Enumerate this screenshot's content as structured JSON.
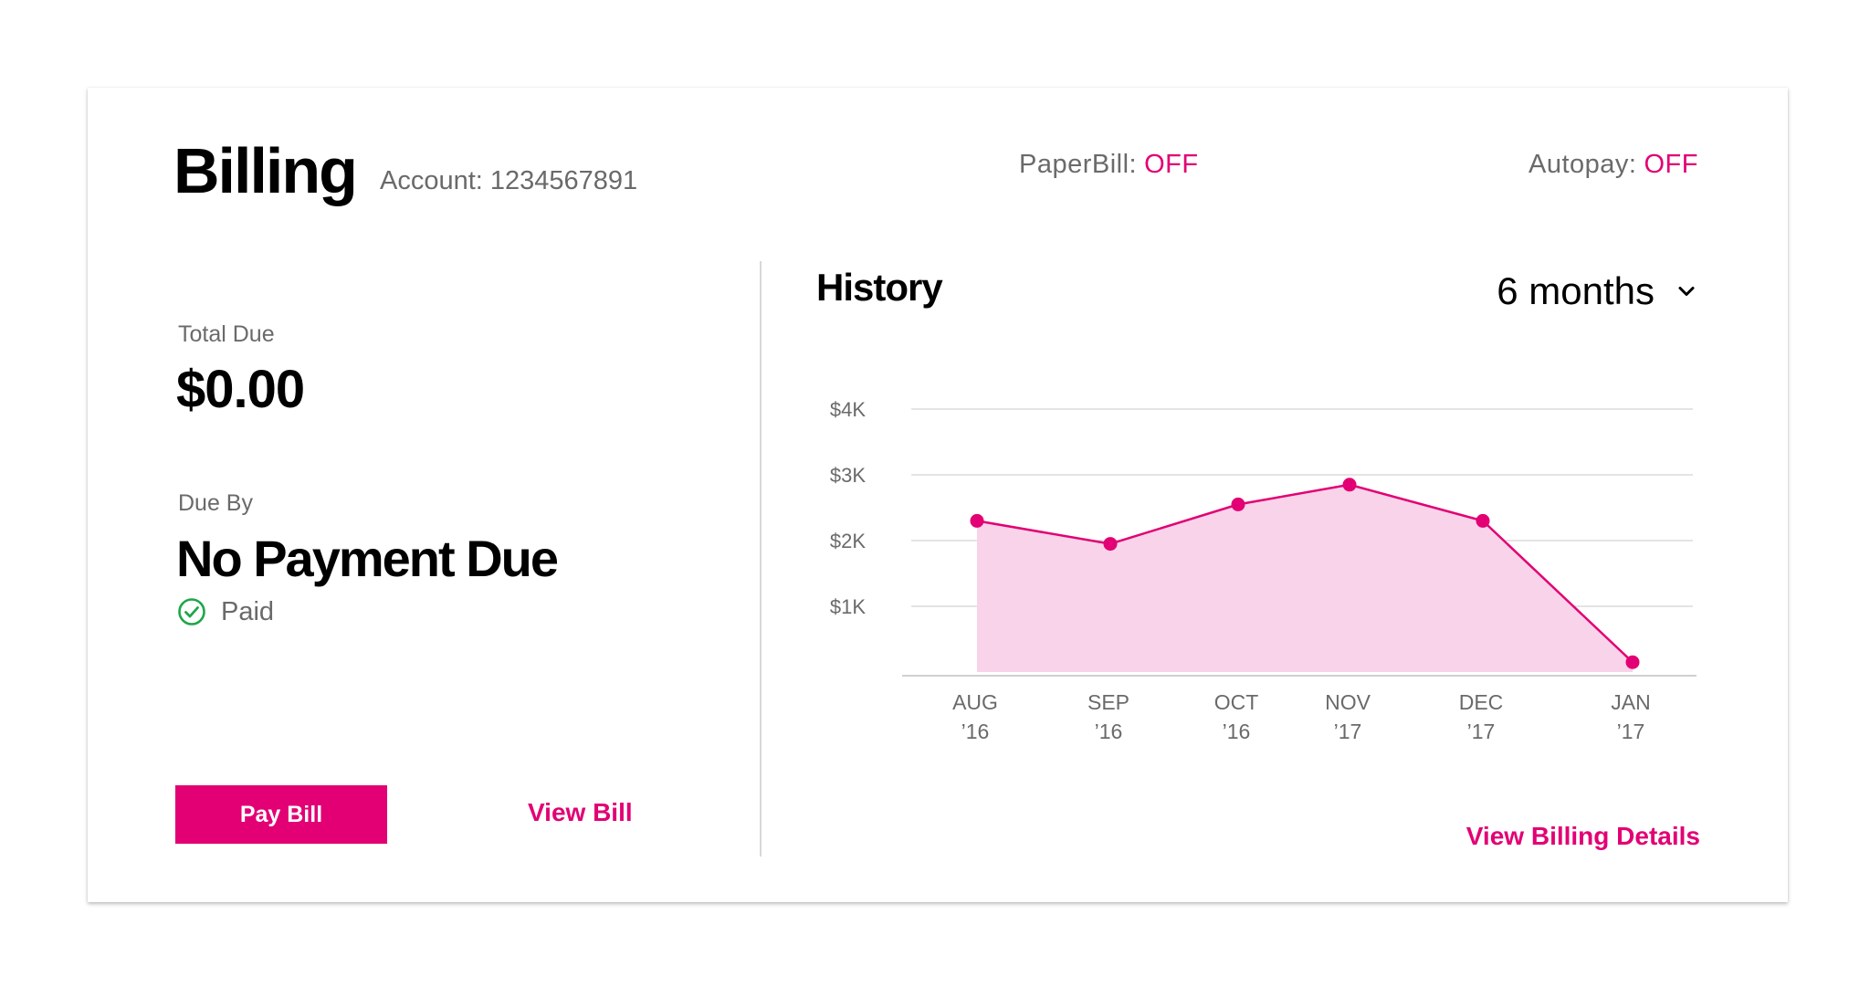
{
  "header": {
    "title": "Billing",
    "account": "Account: 1234567891",
    "paperbill_label": "PaperBill:",
    "paperbill_value": "OFF",
    "autopay_label": "Autopay:",
    "autopay_value": "OFF"
  },
  "summary": {
    "total_due_label": "Total Due",
    "total_due_value": "$0.00",
    "due_by_label": "Due By",
    "due_by_value": "No Payment Due",
    "status": "Paid",
    "status_icon": "check-circle-icon"
  },
  "actions": {
    "pay_bill": "Pay Bill",
    "view_bill": "View Bill",
    "view_billing_details": "View Billing Details"
  },
  "history": {
    "title": "History",
    "range_selected": "6 months"
  },
  "colors": {
    "accent": "#e20074",
    "area_fill": "#f8d3ea",
    "paid_green": "#1ea64a"
  },
  "chart_data": {
    "type": "area",
    "categories": [
      "AUG '16",
      "SEP '16",
      "OCT '16",
      "NOV '17",
      "DEC '17",
      "JAN '17"
    ],
    "x_month": [
      "AUG",
      "SEP",
      "OCT",
      "NOV",
      "DEC",
      "JAN"
    ],
    "x_year": [
      "’16",
      "’16",
      "’16",
      "’17",
      "’17",
      "’17"
    ],
    "values": [
      2300,
      1950,
      2550,
      2850,
      2300,
      150
    ],
    "y_ticks": [
      1000,
      2000,
      3000,
      4000
    ],
    "y_tick_labels": [
      "$1K",
      "$2K",
      "$3K",
      "$4K"
    ],
    "ylim": [
      0,
      4000
    ],
    "grid": true,
    "legend": "none"
  }
}
